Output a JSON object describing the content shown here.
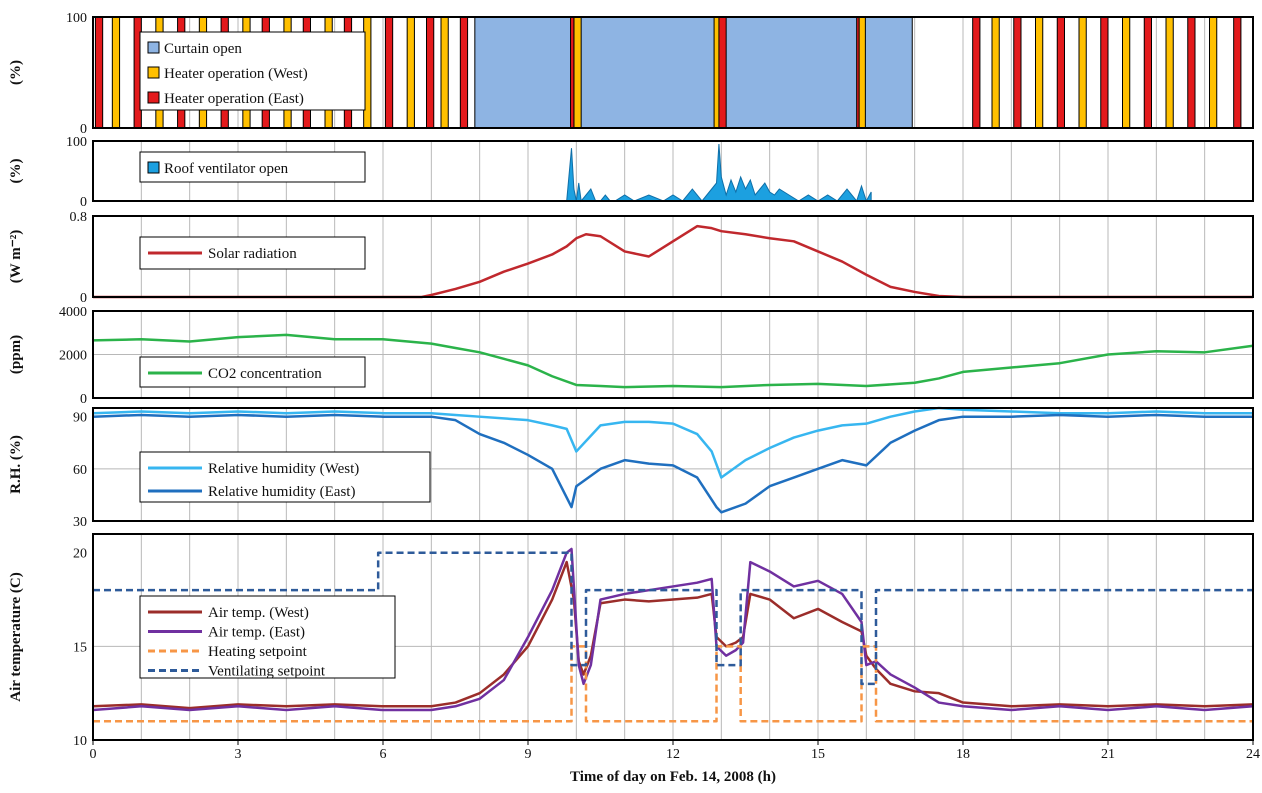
{
  "figure": {
    "xlabel": "Time of day on Feb. 14, 2008  (h)",
    "xlim": [
      0,
      24
    ],
    "xticks": [
      "0",
      "3",
      "6",
      "9",
      "12",
      "15",
      "18",
      "21",
      "24"
    ]
  },
  "colors": {
    "curtain": "#8eb4e3",
    "heater_west": "#ffc000",
    "heater_east": "#e31a1c",
    "roof": "#1ca0e0",
    "solar": "#c0282d",
    "co2": "#2bb34a",
    "rh_west": "#37b6f0",
    "rh_east": "#1f6fbf",
    "temp_west": "#9b2d2a",
    "temp_east": "#7030a0",
    "heat_sp": "#f79646",
    "vent_sp": "#2e5b9a"
  },
  "chart_data": [
    {
      "type": "bar",
      "ylabel": "(%)",
      "ylim": [
        0,
        100
      ],
      "yticks": [
        "0",
        "100"
      ],
      "legend": [
        "Curtain open",
        "Heater operation (West)",
        "Heater operation (East)"
      ],
      "legend_position": "top-left",
      "curtain_open": [
        [
          7.9,
          16.95
        ]
      ],
      "heater_west": [
        [
          0.4,
          0.55
        ],
        [
          1.3,
          1.45
        ],
        [
          2.2,
          2.35
        ],
        [
          3.1,
          3.25
        ],
        [
          3.95,
          4.1
        ],
        [
          4.8,
          4.95
        ],
        [
          5.6,
          5.75
        ],
        [
          6.5,
          6.65
        ],
        [
          7.2,
          7.35
        ],
        [
          9.95,
          10.1
        ],
        [
          12.85,
          13.05
        ],
        [
          15.85,
          15.98
        ],
        [
          18.6,
          18.75
        ],
        [
          19.5,
          19.65
        ],
        [
          20.4,
          20.55
        ],
        [
          21.3,
          21.45
        ],
        [
          22.2,
          22.35
        ],
        [
          23.1,
          23.25
        ]
      ],
      "heater_east": [
        [
          0.05,
          0.2
        ],
        [
          0.85,
          1.0
        ],
        [
          1.75,
          1.9
        ],
        [
          2.65,
          2.8
        ],
        [
          3.5,
          3.65
        ],
        [
          4.35,
          4.5
        ],
        [
          5.2,
          5.35
        ],
        [
          6.05,
          6.2
        ],
        [
          6.9,
          7.05
        ],
        [
          7.6,
          7.75
        ],
        [
          9.88,
          9.95
        ],
        [
          12.95,
          13.1
        ],
        [
          15.8,
          15.85
        ],
        [
          18.2,
          18.35
        ],
        [
          19.05,
          19.2
        ],
        [
          19.95,
          20.1
        ],
        [
          20.85,
          21.0
        ],
        [
          21.75,
          21.9
        ],
        [
          22.65,
          22.8
        ],
        [
          23.6,
          23.75
        ]
      ]
    },
    {
      "type": "area",
      "ylabel": "(%)",
      "ylim": [
        0,
        100
      ],
      "yticks": [
        "0",
        "100"
      ],
      "legend": [
        "Roof ventilator open"
      ],
      "legend_position": "top-left",
      "x": [
        9.8,
        9.9,
        9.95,
        10.0,
        10.05,
        10.1,
        10.3,
        10.4,
        10.5,
        10.6,
        10.7,
        10.8,
        11.0,
        11.2,
        11.5,
        11.8,
        12.0,
        12.2,
        12.4,
        12.6,
        12.8,
        12.9,
        12.95,
        13.0,
        13.1,
        13.2,
        13.3,
        13.4,
        13.5,
        13.6,
        13.7,
        13.8,
        13.9,
        14.0,
        14.1,
        14.2,
        14.4,
        14.6,
        14.8,
        15.0,
        15.2,
        15.4,
        15.6,
        15.8,
        15.9,
        16.0,
        16.1
      ],
      "values": [
        0,
        88,
        20,
        0,
        30,
        0,
        20,
        0,
        0,
        10,
        0,
        0,
        10,
        0,
        10,
        0,
        10,
        0,
        20,
        0,
        20,
        30,
        95,
        40,
        10,
        35,
        15,
        40,
        20,
        35,
        10,
        20,
        30,
        15,
        10,
        20,
        10,
        0,
        10,
        0,
        10,
        0,
        20,
        0,
        25,
        0,
        15
      ]
    },
    {
      "type": "line",
      "ylabel": "(W m⁻²)",
      "ylim": [
        0,
        0.8
      ],
      "yticks": [
        "0",
        "0.8"
      ],
      "legend_position": "top-left",
      "series": [
        {
          "name": "Solar radiation",
          "x": [
            0,
            6.8,
            7.0,
            7.5,
            8.0,
            8.5,
            9.0,
            9.5,
            9.8,
            10.0,
            10.2,
            10.5,
            11.0,
            11.5,
            12.0,
            12.5,
            12.8,
            13.0,
            13.5,
            14.0,
            14.5,
            15.0,
            15.5,
            16.0,
            16.5,
            17.0,
            17.5,
            18.0,
            24
          ],
          "values": [
            0,
            0,
            0.02,
            0.08,
            0.15,
            0.25,
            0.33,
            0.42,
            0.5,
            0.58,
            0.62,
            0.6,
            0.45,
            0.4,
            0.55,
            0.7,
            0.68,
            0.65,
            0.62,
            0.58,
            0.55,
            0.45,
            0.35,
            0.22,
            0.1,
            0.05,
            0.01,
            0,
            0
          ]
        }
      ]
    },
    {
      "type": "line",
      "ylabel": "(ppm)",
      "ylim": [
        0,
        4000
      ],
      "yticks": [
        "0",
        "2000",
        "4000"
      ],
      "legend_position": "bottom-left",
      "series": [
        {
          "name": "CO2 concentration",
          "x": [
            0,
            1,
            2,
            3,
            4,
            5,
            6,
            7,
            7.5,
            8,
            8.5,
            9,
            9.5,
            10,
            10.5,
            11,
            12,
            13,
            14,
            15,
            16,
            17,
            17.5,
            18,
            19,
            20,
            21,
            22,
            23,
            24
          ],
          "values": [
            2650,
            2700,
            2600,
            2800,
            2900,
            2700,
            2700,
            2500,
            2300,
            2100,
            1800,
            1500,
            1000,
            600,
            550,
            500,
            550,
            500,
            600,
            650,
            550,
            700,
            900,
            1200,
            1400,
            1600,
            2000,
            2150,
            2100,
            2400
          ]
        }
      ]
    },
    {
      "type": "line",
      "ylabel": "R.H. (%)",
      "ylim": [
        30,
        95
      ],
      "yticks": [
        "30",
        "60",
        "90"
      ],
      "legend_position": "bottom-left",
      "series": [
        {
          "name": "Relative humidity (West)",
          "x": [
            0,
            1,
            2,
            3,
            4,
            5,
            6,
            7,
            7.5,
            8,
            9,
            9.5,
            9.8,
            10,
            10.5,
            11,
            11.5,
            12,
            12.5,
            12.8,
            13,
            13.5,
            14,
            14.5,
            15,
            15.5,
            16,
            16.5,
            17,
            17.5,
            18,
            19,
            20,
            21,
            22,
            23,
            24
          ],
          "values": [
            92,
            93,
            92,
            93,
            92,
            93,
            92,
            92,
            91,
            90,
            88,
            85,
            83,
            70,
            85,
            87,
            87,
            86,
            80,
            70,
            55,
            65,
            72,
            78,
            82,
            85,
            86,
            90,
            93,
            95,
            94,
            93,
            92,
            92,
            93,
            92,
            92
          ]
        },
        {
          "name": "Relative humidity (East)",
          "x": [
            0,
            1,
            2,
            3,
            4,
            5,
            6,
            7,
            7.5,
            8,
            8.5,
            9,
            9.5,
            9.9,
            10,
            10.5,
            11,
            11.5,
            12,
            12.5,
            12.9,
            13,
            13.5,
            14,
            14.5,
            15,
            15.5,
            16,
            16.5,
            17,
            17.5,
            18,
            19,
            20,
            21,
            22,
            23,
            24
          ],
          "values": [
            90,
            91,
            90,
            91,
            90,
            91,
            90,
            90,
            88,
            80,
            75,
            68,
            60,
            38,
            50,
            60,
            65,
            63,
            62,
            55,
            38,
            35,
            40,
            50,
            55,
            60,
            65,
            62,
            75,
            82,
            88,
            90,
            90,
            91,
            90,
            91,
            90,
            90
          ]
        }
      ]
    },
    {
      "type": "line",
      "ylabel": "Air temperature (C)",
      "ylim": [
        10,
        21
      ],
      "yticks": [
        "10",
        "15",
        "20"
      ],
      "legend_position": "center-left",
      "series": [
        {
          "name": "Air temp. (West)",
          "x": [
            0,
            1,
            2,
            3,
            4,
            5,
            6,
            7,
            7.5,
            8,
            8.5,
            9,
            9.5,
            9.8,
            9.95,
            10.05,
            10.15,
            10.3,
            10.5,
            11,
            11.5,
            12,
            12.5,
            12.8,
            12.9,
            13.1,
            13.3,
            13.45,
            13.6,
            14,
            14.5,
            15,
            15.5,
            15.9,
            16.0,
            16.2,
            16.5,
            17,
            17.5,
            18,
            19,
            20,
            21,
            22,
            23,
            24
          ],
          "values": [
            11.8,
            11.9,
            11.7,
            11.9,
            11.8,
            11.9,
            11.8,
            11.8,
            12.0,
            12.5,
            13.5,
            15.0,
            17.5,
            19.5,
            17.5,
            14.2,
            13.5,
            14.5,
            17.3,
            17.5,
            17.4,
            17.5,
            17.6,
            17.8,
            15.5,
            15.0,
            15.2,
            15.5,
            17.8,
            17.5,
            16.5,
            17.0,
            16.3,
            15.8,
            14.5,
            13.8,
            13.0,
            12.6,
            12.5,
            12.0,
            11.8,
            11.9,
            11.8,
            11.9,
            11.8,
            11.9
          ]
        },
        {
          "name": "Air temp. (East)",
          "x": [
            0,
            1,
            2,
            3,
            4,
            5,
            6,
            7,
            7.5,
            8,
            8.5,
            9,
            9.5,
            9.8,
            9.9,
            10.05,
            10.15,
            10.3,
            10.5,
            11,
            11.5,
            12,
            12.5,
            12.8,
            12.9,
            13.1,
            13.3,
            13.45,
            13.6,
            14,
            14.5,
            15,
            15.5,
            15.9,
            16.0,
            16.2,
            16.5,
            17,
            17.5,
            18,
            19,
            20,
            21,
            22,
            23,
            24
          ],
          "values": [
            11.6,
            11.8,
            11.6,
            11.8,
            11.6,
            11.8,
            11.6,
            11.6,
            11.8,
            12.2,
            13.2,
            15.5,
            18.0,
            20.0,
            20.2,
            14.0,
            13.0,
            14.0,
            17.5,
            17.8,
            18.0,
            18.2,
            18.4,
            18.6,
            15.0,
            14.5,
            14.8,
            15.2,
            19.5,
            19.0,
            18.2,
            18.5,
            17.8,
            16.3,
            14.0,
            14.2,
            13.5,
            12.8,
            12.0,
            11.8,
            11.6,
            11.8,
            11.6,
            11.8,
            11.6,
            11.8
          ]
        },
        {
          "name": "Heating setpoint",
          "x": [
            0,
            9.9,
            9.9,
            10.2,
            10.2,
            12.9,
            12.9,
            13.4,
            13.4,
            15.9,
            15.9,
            16.2,
            16.2,
            24
          ],
          "values": [
            11,
            11,
            15,
            15,
            11,
            11,
            15,
            15,
            11,
            11,
            15,
            15,
            11,
            11
          ]
        },
        {
          "name": "Ventilating setpoint",
          "x": [
            0,
            5.9,
            5.9,
            9.9,
            9.9,
            10.2,
            10.2,
            12.9,
            12.9,
            13.4,
            13.4,
            15.9,
            15.9,
            16.2,
            16.2,
            24
          ],
          "values": [
            18,
            18,
            20,
            20,
            14,
            14,
            18,
            18,
            14,
            14,
            18,
            18,
            13,
            13,
            18,
            18
          ]
        }
      ]
    }
  ]
}
